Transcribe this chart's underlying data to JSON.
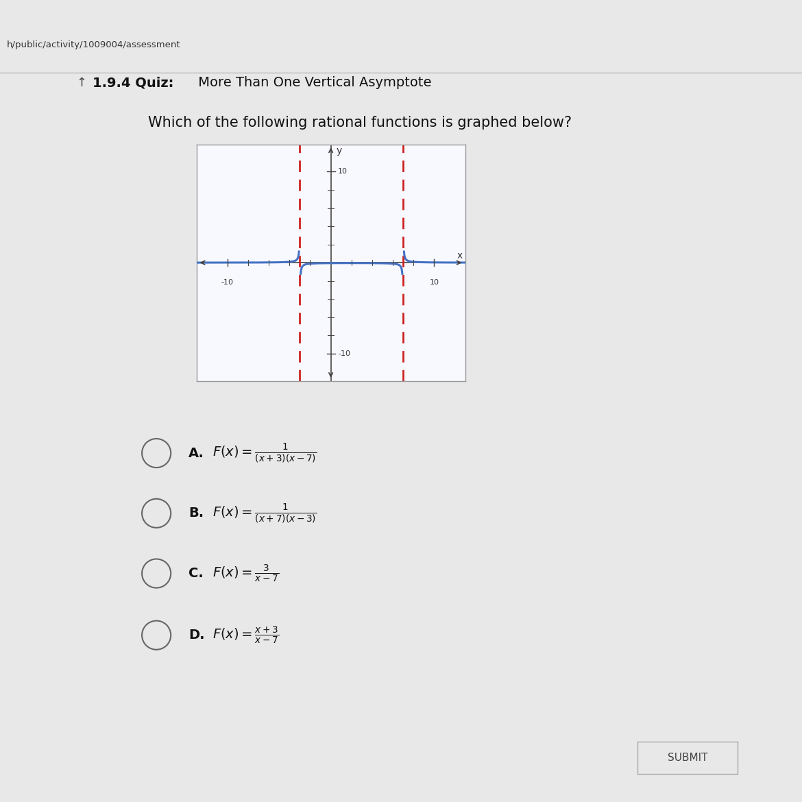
{
  "page_bg": "#e8e8e8",
  "content_bg": "#eeeeee",
  "top_bar_color": "#3a8a96",
  "url_bar_color": "#cccccc",
  "url_text": "h/public/activity/1009004/assessment",
  "title_bold": "1.9.4 Quiz:",
  "title_normal": " More Than One Vertical Asymptote",
  "question": "Which of the following rational functions is graphed below?",
  "graph": {
    "xlim": [
      -13,
      13
    ],
    "ylim": [
      -13,
      13
    ],
    "xtick_labels": [
      "-10",
      "10"
    ],
    "xtick_vals": [
      -10,
      10
    ],
    "ytick_labels": [
      "10",
      "-10"
    ],
    "ytick_vals": [
      10,
      -10
    ],
    "asymptotes": [
      -3,
      7
    ],
    "curve_color": "#4472c4",
    "asymptote_color": "#cc2222",
    "axis_color": "#444444",
    "curve_linewidth": 2.2,
    "asymptote_linewidth": 2.0,
    "graph_bg": "#f8f8ff",
    "border_color": "#999999"
  },
  "answers": [
    {
      "label": "A.",
      "formula_top": "1",
      "formula_bot": "(x+3)(x−7)"
    },
    {
      "label": "B.",
      "formula_top": "1",
      "formula_bot": "(x+7)(x−3)"
    },
    {
      "label": "C.",
      "formula_top": "3",
      "formula_bot": "x−7"
    },
    {
      "label": "D.",
      "formula_top": "x+3",
      "formula_bot": "x−7"
    }
  ],
  "submit_button": "SUBMIT",
  "font_size_title": 14,
  "font_size_question": 15,
  "font_size_answers": 14
}
